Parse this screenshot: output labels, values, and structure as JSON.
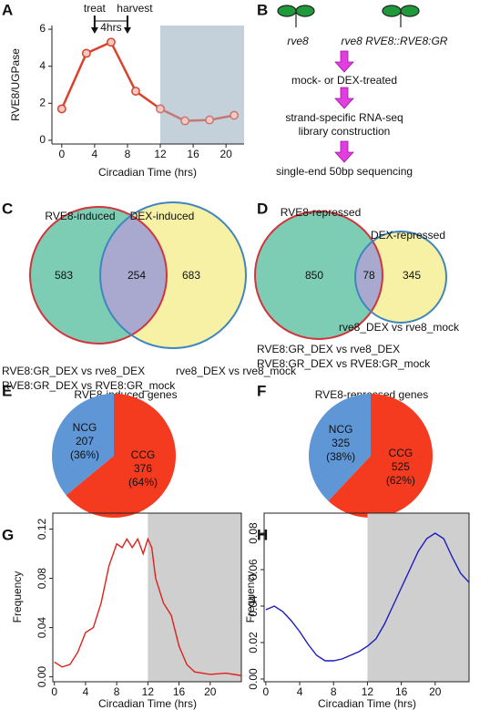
{
  "panel_labels": [
    "A",
    "B",
    "C",
    "D",
    "E",
    "F",
    "G",
    "H"
  ],
  "diagram": {
    "genotypes": [
      "rve8",
      "rve8 RVE8::RVE8:GR"
    ],
    "steps": [
      [
        "mock- or DEX-treated"
      ],
      [
        "strand-specific RNA-seq",
        "library construction"
      ],
      [
        "single-end 50bp sequencing"
      ]
    ]
  },
  "chart_data": [
    {
      "type": "line",
      "y_label": "RVE8/UGPase",
      "x_label": "Circadian Time (hrs)",
      "x": [
        0,
        3,
        6,
        9,
        12,
        15,
        18,
        21
      ],
      "series": [
        {
          "color": "#d9432e",
          "values": [
            1.7,
            4.7,
            5.3,
            2.65,
            1.7,
            null,
            null,
            null
          ]
        },
        {
          "color": "#c47a74",
          "values": [
            null,
            null,
            null,
            null,
            1.7,
            1.05,
            1.1,
            1.35
          ]
        }
      ],
      "markers": true,
      "frame": false,
      "xlim": [
        -1.2,
        22.2
      ],
      "ylim": [
        -0.2,
        6.2
      ],
      "xticks": [
        0,
        4,
        8,
        12,
        16,
        20
      ],
      "yticks": [
        0,
        2,
        4,
        6
      ],
      "shade_from": 12,
      "shade_color": "#c4d0da",
      "annotations": [
        {
          "text": "treat",
          "x": 4
        },
        {
          "text": "harvest",
          "x": 8
        }
      ],
      "interval_label": "4hrs"
    },
    {
      "type": "venn",
      "sets": [
        {
          "name": "RVE8-induced",
          "color": "#d0353b",
          "fill": "#7dcdb5"
        },
        {
          "name": "DEX-induced",
          "color": "#3f86c0",
          "fill": "#f7f1a6"
        }
      ],
      "overlap_color": "#a9a8cf",
      "values": [
        583,
        254,
        683
      ],
      "comparisons": [
        {
          "text": "RVE8:GR_DEX vs rve8_DEX",
          "color": "#d0353b"
        },
        {
          "text": "RVE8:GR_DEX vs RVE8:GR_mock",
          "color": "#d0353b"
        },
        {
          "text": "rve8_DEX vs rve8_mock",
          "color": "#3f86c0"
        }
      ]
    },
    {
      "type": "venn",
      "sets": [
        {
          "name": "RVE8-repressed",
          "color": "#d0353b",
          "fill": "#7dcdb5"
        },
        {
          "name": "DEX-repressed",
          "color": "#3f86c0",
          "fill": "#f7f1a6"
        }
      ],
      "overlap_color": "#a9a8cf",
      "values": [
        850,
        78,
        345
      ],
      "comparisons": [
        {
          "text": "rve8_DEX vs rve8_mock",
          "color": "#3f86c0"
        },
        {
          "text": "RVE8:GR_DEX vs rve8_DEX",
          "color": "#d0353b"
        },
        {
          "text": "RVE8:GR_DEX vs RVE8:GR_mock",
          "color": "#d0353b"
        }
      ]
    },
    {
      "type": "pie",
      "title": "RVE8-induced genes",
      "categories": [
        "CCG",
        "NCG"
      ],
      "counts": [
        376,
        207
      ],
      "values": [
        64,
        36
      ],
      "value_labels": [
        "(64%)",
        "(36%)"
      ],
      "colors": [
        "#f43a1f",
        "#5f97d6"
      ]
    },
    {
      "type": "pie",
      "title": "RVE8-repressed genes",
      "categories": [
        "CCG",
        "NCG"
      ],
      "counts": [
        525,
        325
      ],
      "values": [
        62,
        38
      ],
      "value_labels": [
        "(62%)",
        "(38%)"
      ],
      "colors": [
        "#f43a1f",
        "#5f97d6"
      ]
    },
    {
      "type": "line",
      "y_label": "Frequency",
      "x_label": "Circadian Time (hrs)",
      "frame": true,
      "rotate_yticks": true,
      "x": [
        0,
        1,
        2,
        3,
        4,
        5,
        6,
        7,
        8,
        8.7,
        9.3,
        10,
        10.7,
        11.4,
        12,
        12.5,
        13,
        14,
        15,
        16,
        17,
        18,
        20,
        22,
        24
      ],
      "series": [
        {
          "color": "#e0201b",
          "values": [
            0.012,
            0.008,
            0.01,
            0.02,
            0.036,
            0.04,
            0.06,
            0.09,
            0.108,
            0.105,
            0.112,
            0.105,
            0.112,
            0.1,
            0.112,
            0.105,
            0.08,
            0.06,
            0.05,
            0.025,
            0.01,
            0.004,
            0.002,
            0.003,
            0.001
          ]
        }
      ],
      "xlim": [
        -0.2,
        24
      ],
      "ylim": [
        -0.004,
        0.133
      ],
      "xticks": [
        0,
        4,
        8,
        12,
        16,
        20
      ],
      "yticks": [
        {
          "value": 0,
          "label": "0.00"
        },
        {
          "value": 0.04,
          "label": "0.04"
        },
        {
          "value": 0.08,
          "label": "0.08"
        },
        {
          "value": 0.12,
          "label": "0.12"
        }
      ],
      "shade_from": 12,
      "shade_color": "#cfcfcf"
    },
    {
      "type": "line",
      "y_label": "Frequency",
      "x_label": "Circadian Time (hrs)",
      "frame": true,
      "rotate_yticks": true,
      "x": [
        0,
        1,
        2,
        3,
        4,
        5,
        6,
        7,
        8,
        9,
        10,
        11,
        12,
        13,
        14,
        15,
        16,
        17,
        18,
        19,
        20,
        21,
        22,
        23,
        24
      ],
      "series": [
        {
          "color": "#1c1cc0",
          "values": [
            0.038,
            0.04,
            0.037,
            0.032,
            0.026,
            0.019,
            0.013,
            0.01,
            0.01,
            0.011,
            0.013,
            0.015,
            0.018,
            0.022,
            0.03,
            0.04,
            0.05,
            0.06,
            0.07,
            0.077,
            0.08,
            0.077,
            0.067,
            0.058,
            0.053
          ]
        }
      ],
      "xlim": [
        -0.2,
        24
      ],
      "ylim": [
        -0.0015,
        0.091
      ],
      "xticks": [
        0,
        4,
        8,
        12,
        16,
        20
      ],
      "yticks": [
        {
          "value": 0,
          "label": "0.00"
        },
        {
          "value": 0.02,
          "label": "0.02"
        },
        {
          "value": 0.04,
          "label": "0.04"
        },
        {
          "value": 0.06,
          "label": "0.06"
        },
        {
          "value": 0.08,
          "label": "0.08"
        }
      ],
      "shade_from": 12,
      "shade_color": "#cfcfcf"
    }
  ]
}
